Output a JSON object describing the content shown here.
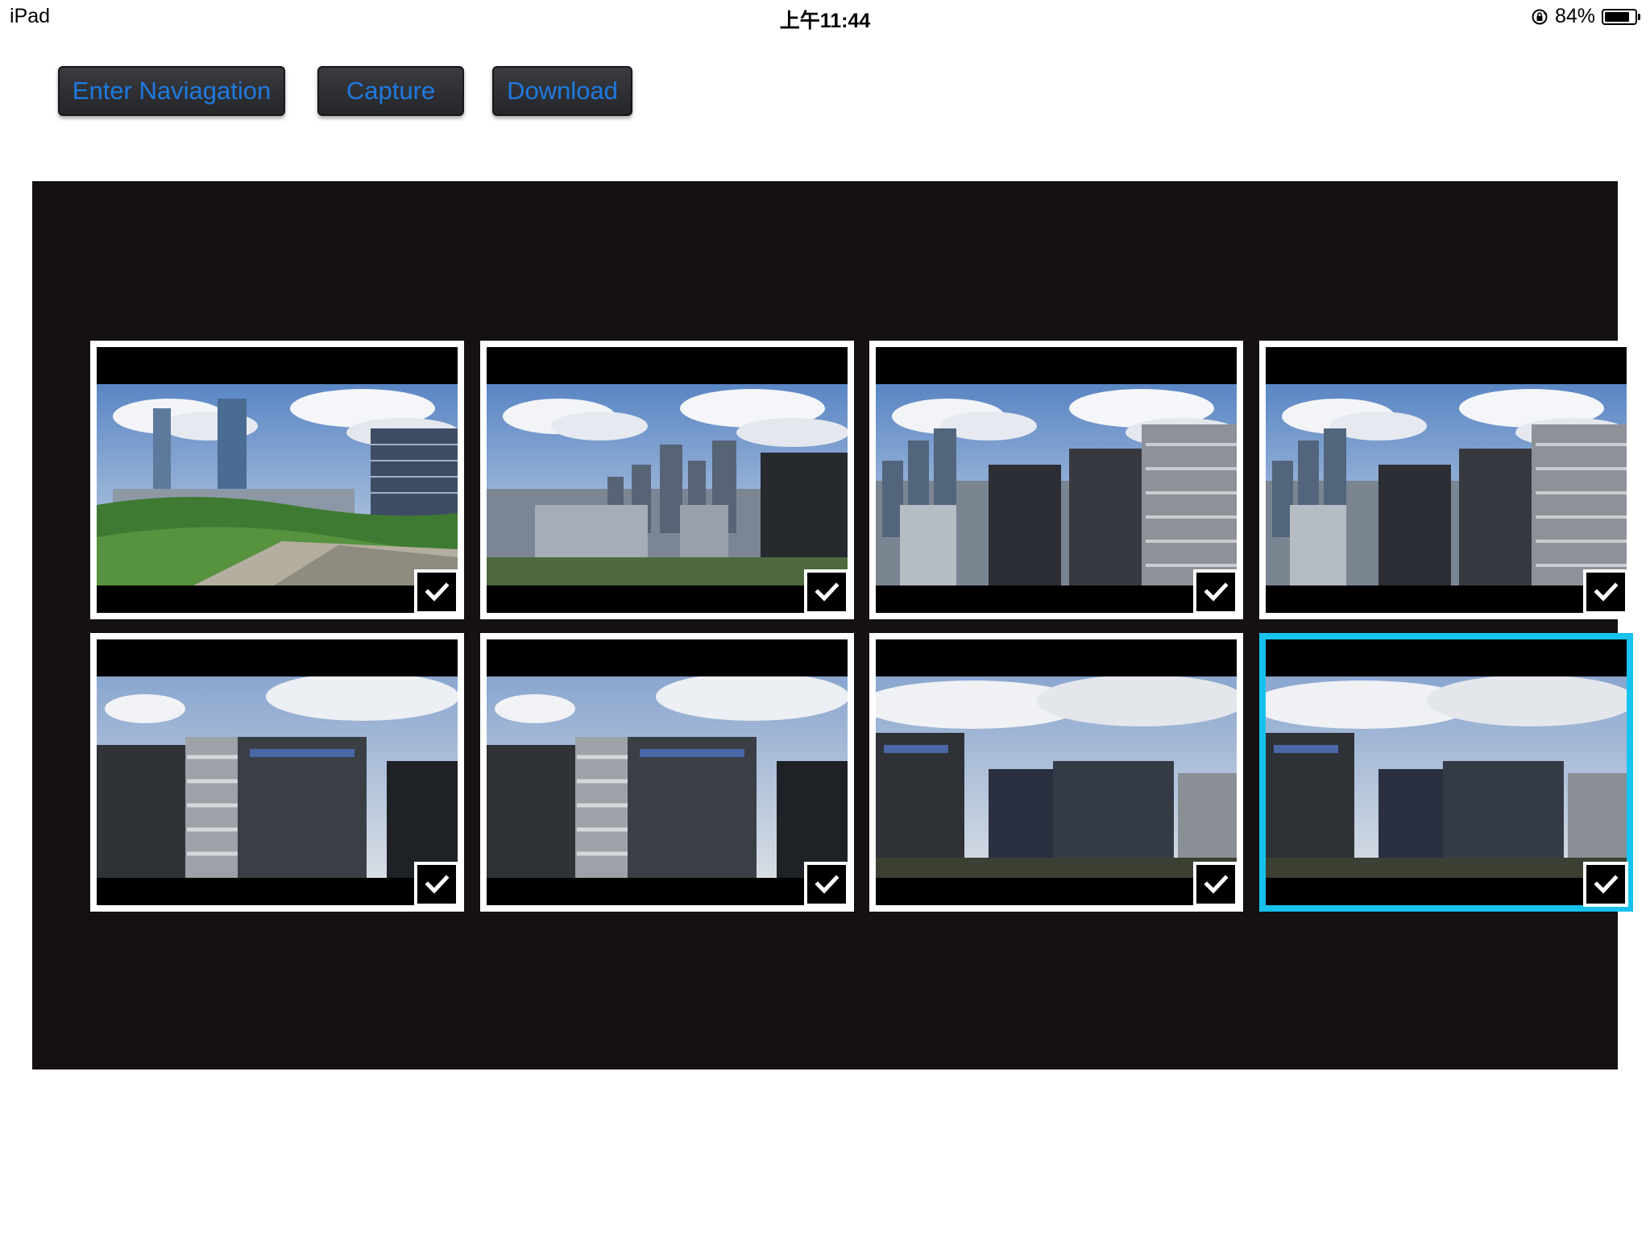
{
  "status_bar": {
    "device": "iPad",
    "time": "上午11:44",
    "battery_text": "84%",
    "battery_level": 0.84
  },
  "toolbar": {
    "enter_navigation_label": "Enter Naviagation",
    "capture_label": "Capture",
    "download_label": "Download",
    "label_color": "#1e7ae0"
  },
  "gallery": {
    "background": "#141014",
    "selected_border_color": "#17c3ee",
    "items": [
      {
        "scene": "city-park",
        "checked": true,
        "selected": false
      },
      {
        "scene": "skyline-wide",
        "checked": true,
        "selected": false
      },
      {
        "scene": "towers-right",
        "checked": true,
        "selected": false
      },
      {
        "scene": "towers-right",
        "checked": true,
        "selected": false
      },
      {
        "scene": "office-front",
        "checked": true,
        "selected": false
      },
      {
        "scene": "office-front",
        "checked": true,
        "selected": false
      },
      {
        "scene": "office-cloudy",
        "checked": true,
        "selected": false
      },
      {
        "scene": "office-cloudy",
        "checked": true,
        "selected": true
      }
    ]
  }
}
